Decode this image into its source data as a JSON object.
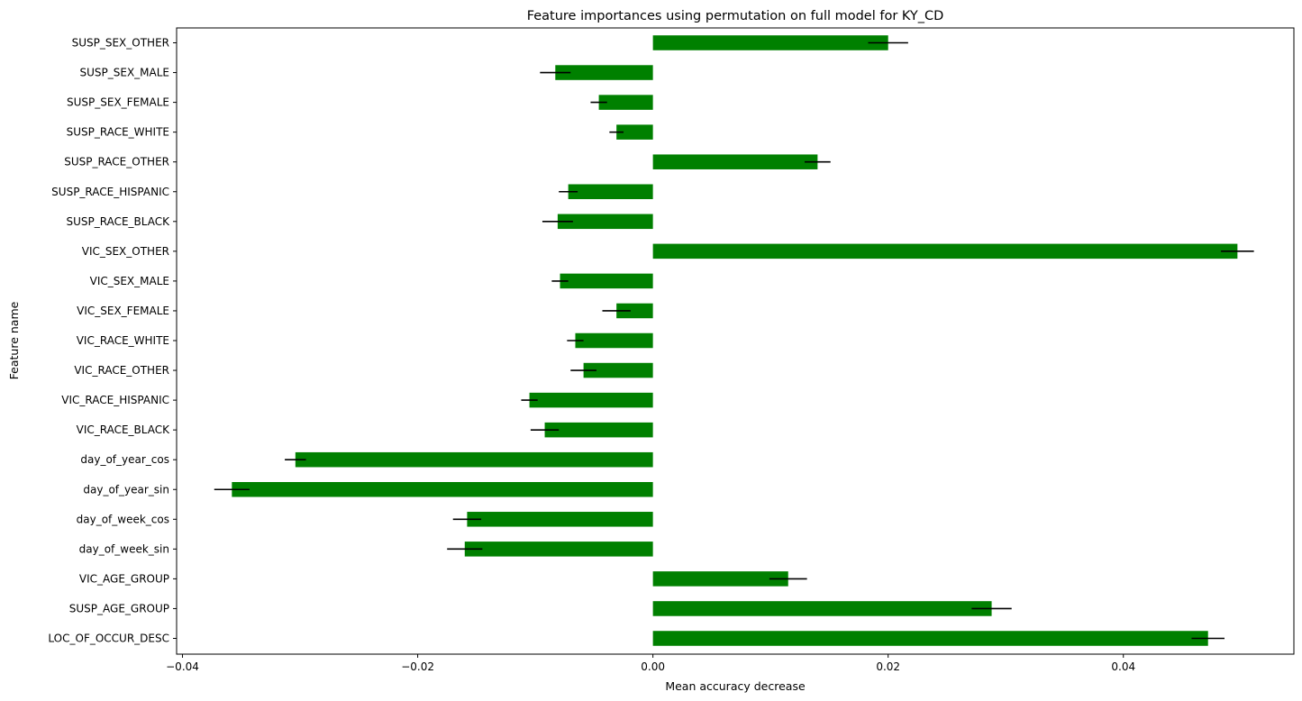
{
  "chart_data": {
    "type": "bar",
    "orientation": "horizontal",
    "title": "Feature importances using permutation on full model for KY_CD",
    "xlabel": "Mean accuracy decrease",
    "ylabel": "Feature name",
    "xlim": [
      -0.0405,
      0.0545
    ],
    "xticks": [
      -0.04,
      -0.02,
      0.0,
      0.02,
      0.04
    ],
    "xtick_labels": [
      "−0.04",
      "−0.02",
      "0.00",
      "0.02",
      "0.04"
    ],
    "bar_color": "#008000",
    "error_color": "#000000",
    "grid": false,
    "categories": [
      "SUSP_SEX_OTHER",
      "SUSP_SEX_MALE",
      "SUSP_SEX_FEMALE",
      "SUSP_RACE_WHITE",
      "SUSP_RACE_OTHER",
      "SUSP_RACE_HISPANIC",
      "SUSP_RACE_BLACK",
      "VIC_SEX_OTHER",
      "VIC_SEX_MALE",
      "VIC_SEX_FEMALE",
      "VIC_RACE_WHITE",
      "VIC_RACE_OTHER",
      "VIC_RACE_HISPANIC",
      "VIC_RACE_BLACK",
      "day_of_year_cos",
      "day_of_year_sin",
      "day_of_week_cos",
      "day_of_week_sin",
      "VIC_AGE_GROUP",
      "SUSP_AGE_GROUP",
      "LOC_OF_OCCUR_DESC"
    ],
    "values": [
      0.02,
      -0.0083,
      -0.0046,
      -0.0031,
      0.014,
      -0.0072,
      -0.0081,
      0.0497,
      -0.0079,
      -0.0031,
      -0.0066,
      -0.0059,
      -0.0105,
      -0.0092,
      -0.0304,
      -0.0358,
      -0.0158,
      -0.016,
      0.0115,
      0.0288,
      0.0472
    ],
    "errors": [
      0.0017,
      0.0013,
      0.0007,
      0.0006,
      0.0011,
      0.0008,
      0.0013,
      0.0014,
      0.0007,
      0.0012,
      0.0007,
      0.0011,
      0.0007,
      0.0012,
      0.0009,
      0.0015,
      0.0012,
      0.0015,
      0.0016,
      0.0017,
      0.0014
    ]
  }
}
